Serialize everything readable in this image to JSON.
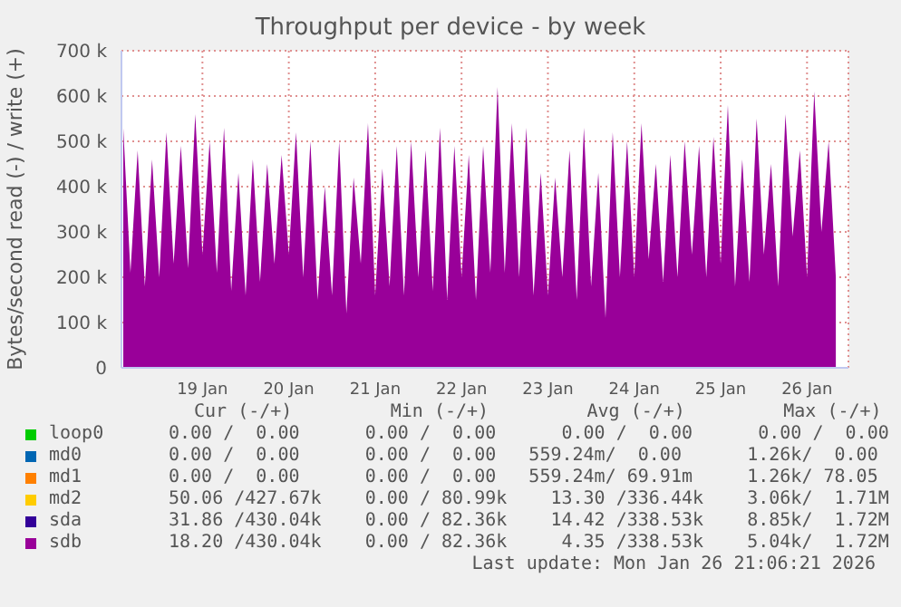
{
  "chart_data": {
    "type": "area",
    "title": "Throughput per device - by week",
    "ylabel": "Bytes/second read (-) / write (+)",
    "x": [
      "2026-01-18T14:00",
      "2026-01-18T16:00",
      "2026-01-18T18:00",
      "2026-01-18T20:00",
      "2026-01-18T22:00",
      "2026-01-19T00:00",
      "2026-01-19T02:00",
      "2026-01-19T04:00",
      "2026-01-19T06:00",
      "2026-01-19T08:00",
      "2026-01-19T10:00",
      "2026-01-19T12:00",
      "2026-01-19T14:00",
      "2026-01-19T16:00",
      "2026-01-19T18:00",
      "2026-01-19T20:00",
      "2026-01-19T22:00",
      "2026-01-20T00:00",
      "2026-01-20T02:00",
      "2026-01-20T04:00",
      "2026-01-20T06:00",
      "2026-01-20T08:00",
      "2026-01-20T10:00",
      "2026-01-20T12:00",
      "2026-01-20T14:00",
      "2026-01-20T16:00",
      "2026-01-20T18:00",
      "2026-01-20T20:00",
      "2026-01-20T22:00",
      "2026-01-21T00:00",
      "2026-01-21T02:00",
      "2026-01-21T04:00",
      "2026-01-21T06:00",
      "2026-01-21T08:00",
      "2026-01-21T10:00",
      "2026-01-21T12:00",
      "2026-01-21T14:00",
      "2026-01-21T16:00",
      "2026-01-21T18:00",
      "2026-01-21T20:00",
      "2026-01-21T22:00",
      "2026-01-22T00:00",
      "2026-01-22T02:00",
      "2026-01-22T04:00",
      "2026-01-22T06:00",
      "2026-01-22T08:00",
      "2026-01-22T10:00",
      "2026-01-22T12:00",
      "2026-01-22T14:00",
      "2026-01-22T16:00",
      "2026-01-22T18:00",
      "2026-01-22T20:00",
      "2026-01-22T22:00",
      "2026-01-23T00:00",
      "2026-01-23T02:00",
      "2026-01-23T04:00",
      "2026-01-23T06:00",
      "2026-01-23T08:00",
      "2026-01-23T10:00",
      "2026-01-23T12:00",
      "2026-01-23T14:00",
      "2026-01-23T16:00",
      "2026-01-23T18:00",
      "2026-01-23T20:00",
      "2026-01-23T22:00",
      "2026-01-24T00:00",
      "2026-01-24T02:00",
      "2026-01-24T04:00",
      "2026-01-24T06:00",
      "2026-01-24T08:00",
      "2026-01-24T10:00",
      "2026-01-24T12:00",
      "2026-01-24T14:00",
      "2026-01-24T16:00",
      "2026-01-24T18:00",
      "2026-01-24T20:00",
      "2026-01-24T22:00",
      "2026-01-25T00:00",
      "2026-01-25T02:00",
      "2026-01-25T04:00",
      "2026-01-25T06:00",
      "2026-01-25T08:00",
      "2026-01-25T10:00",
      "2026-01-25T12:00",
      "2026-01-25T14:00",
      "2026-01-25T16:00",
      "2026-01-25T18:00",
      "2026-01-25T20:00",
      "2026-01-25T22:00",
      "2026-01-26T00:00",
      "2026-01-26T02:00",
      "2026-01-26T04:00",
      "2026-01-26T06:00",
      "2026-01-26T08:00",
      "2026-01-26T10:00",
      "2026-01-26T12:00",
      "2026-01-26T14:00",
      "2026-01-26T16:00",
      "2026-01-26T18:00",
      "2026-01-26T20:00"
    ],
    "series": [
      {
        "name": "loop0",
        "color": "#00cc00",
        "values": [
          null,
          null,
          null,
          null,
          null,
          null,
          null,
          null,
          null,
          null,
          null,
          null,
          null,
          null,
          null,
          null,
          null,
          null,
          null,
          null,
          null,
          null,
          null,
          null,
          null,
          null,
          null,
          null,
          null,
          null,
          null,
          null,
          null,
          null,
          null,
          null,
          null,
          null,
          null,
          null,
          null,
          null,
          null,
          null,
          null,
          null,
          null,
          null,
          null,
          null,
          null,
          null,
          null,
          null,
          null,
          null,
          null,
          null,
          null,
          null,
          null,
          null,
          null,
          null,
          null,
          null,
          null,
          null,
          null,
          null,
          null,
          null,
          null,
          null,
          null,
          null,
          null,
          null,
          null,
          null,
          null,
          null,
          null,
          null,
          null,
          null,
          null,
          null,
          null,
          null,
          null,
          null,
          null,
          null,
          null,
          null,
          null,
          null,
          null,
          null
        ]
      },
      {
        "name": "md0",
        "color": "#0066b3",
        "values": [
          null,
          null,
          null,
          null,
          null,
          null,
          null,
          null,
          null,
          null,
          null,
          null,
          null,
          null,
          null,
          null,
          null,
          null,
          null,
          null,
          null,
          null,
          null,
          null,
          null,
          null,
          null,
          null,
          null,
          null,
          null,
          null,
          null,
          null,
          null,
          null,
          null,
          null,
          null,
          null,
          null,
          null,
          null,
          null,
          null,
          null,
          null,
          null,
          null,
          null,
          null,
          null,
          null,
          null,
          null,
          null,
          null,
          null,
          null,
          null,
          null,
          null,
          null,
          null,
          null,
          null,
          null,
          null,
          null,
          null,
          null,
          null,
          null,
          null,
          null,
          null,
          null,
          null,
          null,
          null,
          null,
          null,
          null,
          null,
          null,
          null,
          null,
          null,
          null,
          null,
          null,
          null,
          null,
          null,
          null,
          null,
          null,
          null,
          null,
          null
        ]
      },
      {
        "name": "md1",
        "color": "#ff8000",
        "values": [
          null,
          null,
          null,
          null,
          null,
          null,
          null,
          null,
          null,
          null,
          null,
          null,
          null,
          null,
          null,
          null,
          null,
          null,
          null,
          null,
          null,
          null,
          null,
          null,
          null,
          null,
          null,
          null,
          null,
          null,
          null,
          null,
          null,
          null,
          null,
          null,
          null,
          null,
          null,
          null,
          null,
          null,
          null,
          null,
          null,
          null,
          null,
          null,
          null,
          null,
          null,
          null,
          null,
          null,
          null,
          null,
          null,
          null,
          null,
          null,
          null,
          null,
          null,
          null,
          null,
          null,
          null,
          null,
          null,
          null,
          null,
          null,
          null,
          null,
          null,
          null,
          null,
          null,
          null,
          null,
          null,
          null,
          null,
          null,
          null,
          null,
          null,
          null,
          null,
          null,
          null,
          null,
          null,
          null,
          null,
          null,
          null,
          null,
          null,
          null
        ]
      },
      {
        "name": "md2",
        "color": "#ffcc00",
        "values": [
          null,
          null,
          null,
          null,
          null,
          null,
          null,
          null,
          null,
          null,
          null,
          null,
          null,
          null,
          null,
          null,
          null,
          null,
          null,
          null,
          null,
          null,
          null,
          null,
          null,
          null,
          null,
          null,
          null,
          null,
          null,
          null,
          null,
          null,
          null,
          null,
          null,
          null,
          null,
          null,
          null,
          null,
          null,
          null,
          null,
          null,
          null,
          null,
          null,
          null,
          null,
          null,
          null,
          null,
          null,
          null,
          null,
          null,
          null,
          null,
          null,
          null,
          null,
          null,
          null,
          null,
          null,
          null,
          null,
          null,
          null,
          null,
          null,
          null,
          null,
          null,
          null,
          null,
          null,
          null,
          null,
          null,
          null,
          null,
          null,
          null,
          null,
          null,
          null,
          null,
          null,
          null,
          null,
          null,
          null,
          null,
          null,
          null,
          null,
          null
        ]
      },
      {
        "name": "sda",
        "color": "#330099",
        "values": [
          null,
          null,
          null,
          null,
          null,
          null,
          null,
          null,
          null,
          null,
          null,
          null,
          null,
          null,
          null,
          null,
          null,
          null,
          null,
          null,
          null,
          null,
          null,
          null,
          null,
          null,
          null,
          null,
          null,
          null,
          null,
          null,
          null,
          null,
          null,
          null,
          null,
          null,
          null,
          null,
          null,
          null,
          null,
          null,
          null,
          null,
          null,
          null,
          null,
          null,
          null,
          null,
          null,
          null,
          null,
          null,
          null,
          null,
          null,
          null,
          null,
          null,
          null,
          null,
          null,
          null,
          null,
          null,
          null,
          null,
          null,
          null,
          null,
          null,
          null,
          null,
          null,
          null,
          null,
          null,
          null,
          null,
          null,
          null,
          null,
          null,
          null,
          null,
          null,
          null,
          null,
          null,
          null,
          null,
          null,
          null,
          null,
          null,
          null,
          null
        ]
      },
      {
        "name": "sdb",
        "color": "#990099",
        "values": [
          530000,
          210000,
          480000,
          180000,
          460000,
          200000,
          520000,
          230000,
          490000,
          220000,
          560000,
          250000,
          500000,
          210000,
          530000,
          170000,
          430000,
          160000,
          460000,
          190000,
          450000,
          230000,
          470000,
          250000,
          520000,
          200000,
          500000,
          150000,
          400000,
          160000,
          500000,
          120000,
          420000,
          230000,
          540000,
          160000,
          440000,
          180000,
          490000,
          160000,
          500000,
          200000,
          480000,
          170000,
          530000,
          150000,
          490000,
          200000,
          470000,
          150000,
          490000,
          210000,
          620000,
          210000,
          540000,
          200000,
          530000,
          160000,
          430000,
          160000,
          420000,
          200000,
          480000,
          150000,
          530000,
          180000,
          430000,
          110000,
          520000,
          200000,
          500000,
          200000,
          540000,
          240000,
          450000,
          190000,
          470000,
          200000,
          500000,
          250000,
          490000,
          200000,
          510000,
          230000,
          580000,
          180000,
          460000,
          190000,
          550000,
          250000,
          450000,
          180000,
          560000,
          290000,
          480000,
          200000,
          610000,
          300000,
          500000,
          200000
        ]
      }
    ],
    "xlim": [
      "2026-01-18T13:30",
      "2026-01-26T23:30"
    ],
    "xticks": [
      {
        "value": "2026-01-19T12:00",
        "label": "19 Jan"
      },
      {
        "value": "2026-01-20T12:00",
        "label": "20 Jan"
      },
      {
        "value": "2026-01-21T12:00",
        "label": "21 Jan"
      },
      {
        "value": "2026-01-22T12:00",
        "label": "22 Jan"
      },
      {
        "value": "2026-01-23T12:00",
        "label": "23 Jan"
      },
      {
        "value": "2026-01-24T12:00",
        "label": "24 Jan"
      },
      {
        "value": "2026-01-25T12:00",
        "label": "25 Jan"
      },
      {
        "value": "2026-01-26T12:00",
        "label": "26 Jan"
      }
    ],
    "ylim": [
      0,
      700000
    ],
    "yticks": [
      0,
      {
        "value": 100000,
        "label": "100 k"
      },
      {
        "value": 200000,
        "label": "200 k"
      },
      {
        "value": 300000,
        "label": "300 k"
      },
      {
        "value": 400000,
        "label": "400 k"
      },
      {
        "value": 500000,
        "label": "500 k"
      },
      {
        "value": 600000,
        "label": "600 k"
      },
      {
        "value": 700000,
        "label": "700 k"
      }
    ],
    "grid": true,
    "legend": "bottom",
    "annotations": [
      "Cur (-/+)         Min (-/+)         Avg (-/+)         Max (-/+)",
      "0.00 /  0.00      0.00 /  0.00      0.00 /  0.00      0.00 /  0.00",
      "0.00 /  0.00      0.00 /  0.00   559.24m/  0.00      1.26k/  0.00",
      "0.00 /  0.00      0.00 /  0.00   559.24m/ 69.91m     1.26k/ 78.05",
      "50.06 /427.67k    0.00 / 80.99k    13.30 /336.44k    3.06k/  1.71M",
      "31.86 /430.04k    0.00 / 82.36k    14.42 /338.53k    8.85k/  1.72M",
      "18.20 /430.04k    0.00 / 82.36k     4.35 /338.53k    5.04k/  1.72M",
      "Last update: Mon Jan 26 21:06:21 2026"
    ]
  }
}
